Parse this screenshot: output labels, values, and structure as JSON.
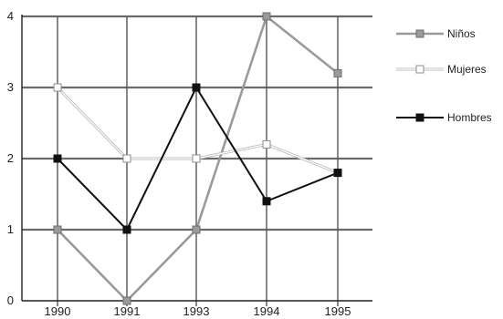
{
  "chart_data": {
    "type": "line",
    "categories": [
      "1990",
      "1991",
      "1993",
      "1994",
      "1995"
    ],
    "ylim": [
      0,
      4
    ],
    "y_ticks": [
      "0",
      "1",
      "2",
      "3",
      "4"
    ],
    "grid": true,
    "legend_position": "right",
    "series": [
      {
        "name": "Niños",
        "values": [
          1,
          0,
          1,
          4,
          3.2
        ],
        "line_color": "#9a9a9a",
        "marker_fill": "#9a9a9a",
        "marker_stroke": "#6e6e6e"
      },
      {
        "name": "Mujeres",
        "values": [
          3,
          2,
          2,
          2.2,
          1.8
        ],
        "line_color": "#dcdcdc",
        "marker_fill": "#ffffff",
        "marker_stroke": "#8c8c8c"
      },
      {
        "name": "Hombres",
        "values": [
          2,
          1,
          3,
          1.4,
          1.8
        ],
        "line_color": "#111111",
        "marker_fill": "#111111",
        "marker_stroke": "#111111"
      }
    ]
  }
}
